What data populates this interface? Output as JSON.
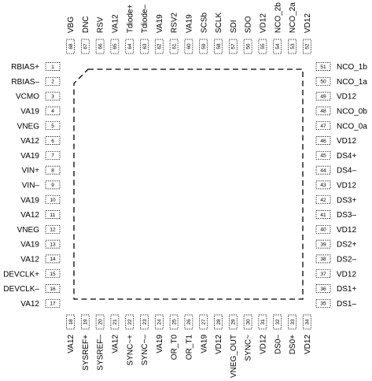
{
  "pins": {
    "left": [
      {
        "num": "1",
        "name": "RBIAS+"
      },
      {
        "num": "2",
        "name": "RBIAS–"
      },
      {
        "num": "3",
        "name": "VCMO"
      },
      {
        "num": "4",
        "name": "VA19"
      },
      {
        "num": "5",
        "name": "VNEG"
      },
      {
        "num": "6",
        "name": "VA12"
      },
      {
        "num": "7",
        "name": "VA19"
      },
      {
        "num": "8",
        "name": "VIN+"
      },
      {
        "num": "9",
        "name": "VIN–"
      },
      {
        "num": "10",
        "name": "VA19"
      },
      {
        "num": "11",
        "name": "VA12"
      },
      {
        "num": "12",
        "name": "VNEG"
      },
      {
        "num": "13",
        "name": "VA19"
      },
      {
        "num": "14",
        "name": "VA12"
      },
      {
        "num": "15",
        "name": "DEVCLK+"
      },
      {
        "num": "16",
        "name": "DEVCLK–"
      },
      {
        "num": "17",
        "name": "VA12"
      }
    ],
    "bottom": [
      {
        "num": "18",
        "name": "VA12"
      },
      {
        "num": "19",
        "name": "SYSREF+"
      },
      {
        "num": "20",
        "name": "SYSREF–"
      },
      {
        "num": "21",
        "name": "VA12"
      },
      {
        "num": "22",
        "name": "SYNC~+"
      },
      {
        "num": "23",
        "name": "SYNC~–"
      },
      {
        "num": "24",
        "name": "VA19"
      },
      {
        "num": "25",
        "name": "OR_T0"
      },
      {
        "num": "26",
        "name": "OR_T1"
      },
      {
        "num": "27",
        "name": "VA19"
      },
      {
        "num": "28",
        "name": "VD12"
      },
      {
        "num": "29",
        "name": "VNEG_OUT"
      },
      {
        "num": "30",
        "name": "SYNC~"
      },
      {
        "num": "31",
        "name": "VD12"
      },
      {
        "num": "32",
        "name": "DS0–"
      },
      {
        "num": "33",
        "name": "DS0+"
      },
      {
        "num": "34",
        "name": "VD12"
      }
    ],
    "right": [
      {
        "num": "51",
        "name": "NCO_1b"
      },
      {
        "num": "50",
        "name": "NCO_1a"
      },
      {
        "num": "49",
        "name": "VD12"
      },
      {
        "num": "48",
        "name": "NCO_0b"
      },
      {
        "num": "47",
        "name": "NCO_0a"
      },
      {
        "num": "46",
        "name": "VD12"
      },
      {
        "num": "45",
        "name": "DS4+"
      },
      {
        "num": "44",
        "name": "DS4–"
      },
      {
        "num": "43",
        "name": "VD12"
      },
      {
        "num": "42",
        "name": "DS3+"
      },
      {
        "num": "41",
        "name": "DS3–"
      },
      {
        "num": "40",
        "name": "VD12"
      },
      {
        "num": "39",
        "name": "DS2+"
      },
      {
        "num": "38",
        "name": "DS2–"
      },
      {
        "num": "37",
        "name": "VD12"
      },
      {
        "num": "36",
        "name": "DS1+"
      },
      {
        "num": "35",
        "name": "DS1–"
      }
    ],
    "top": [
      {
        "num": "68",
        "name": "VBG"
      },
      {
        "num": "67",
        "name": "DNC"
      },
      {
        "num": "66",
        "name": "RSV"
      },
      {
        "num": "65",
        "name": "VA12"
      },
      {
        "num": "64",
        "name": "Tdiode+"
      },
      {
        "num": "63",
        "name": "Tdiode–"
      },
      {
        "num": "62",
        "name": "VA19"
      },
      {
        "num": "61",
        "name": "RSV2"
      },
      {
        "num": "60",
        "name": "VA19"
      },
      {
        "num": "59",
        "name": "SCSb"
      },
      {
        "num": "58",
        "name": "SCLK"
      },
      {
        "num": "57",
        "name": "SDI"
      },
      {
        "num": "56",
        "name": "SDO"
      },
      {
        "num": "55",
        "name": "VD12"
      },
      {
        "num": "54",
        "name": "NCO_2b"
      },
      {
        "num": "53",
        "name": "NCO_2a"
      },
      {
        "num": "52",
        "name": "VD12"
      }
    ]
  }
}
